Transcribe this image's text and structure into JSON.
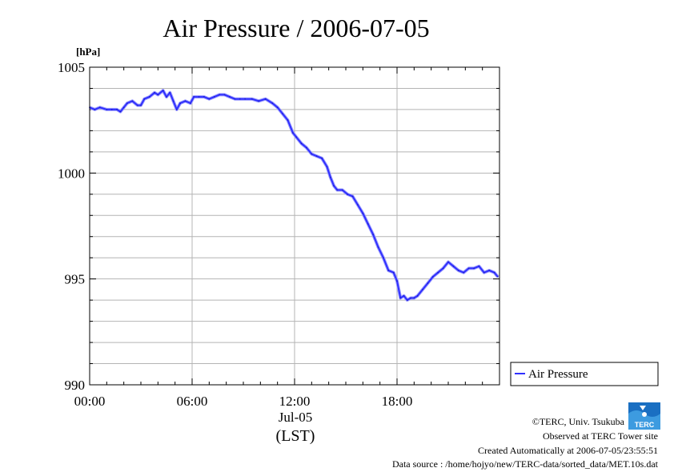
{
  "chart_data": {
    "type": "line",
    "title": "Air Pressure / 2006-07-05",
    "ylabel": "[hPa]",
    "xlabel": "(LST)",
    "date_label": "Jul-05",
    "ylim": [
      990,
      1005
    ],
    "xlim": [
      0,
      24
    ],
    "y_ticks": [
      {
        "value": 990,
        "label": "990"
      },
      {
        "value": 995,
        "label": "995"
      },
      {
        "value": 1000,
        "label": "1000"
      },
      {
        "value": 1005,
        "label": "1005"
      }
    ],
    "x_ticks": [
      {
        "value": 0,
        "label": "00:00"
      },
      {
        "value": 6,
        "label": "06:00"
      },
      {
        "value": 12,
        "label": "12:00"
      },
      {
        "value": 18,
        "label": "18:00"
      }
    ],
    "grid": true,
    "legend_position": "bottom-right, outside plot",
    "series": [
      {
        "name": "Air Pressure",
        "color": "#3030ff",
        "x": [
          0,
          0.3,
          0.6,
          1.0,
          1.3,
          1.6,
          1.8,
          2.0,
          2.2,
          2.5,
          2.8,
          3.0,
          3.2,
          3.5,
          3.8,
          4.0,
          4.3,
          4.5,
          4.7,
          4.9,
          5.1,
          5.3,
          5.6,
          5.9,
          6.1,
          6.4,
          6.7,
          7.0,
          7.3,
          7.6,
          7.9,
          8.2,
          8.5,
          8.8,
          9.1,
          9.5,
          9.9,
          10.3,
          10.7,
          11.0,
          11.3,
          11.6,
          11.9,
          12.1,
          12.4,
          12.7,
          13.0,
          13.3,
          13.6,
          13.9,
          14.1,
          14.3,
          14.5,
          14.8,
          15.1,
          15.4,
          15.7,
          16.0,
          16.3,
          16.6,
          16.9,
          17.2,
          17.5,
          17.8,
          18.0,
          18.2,
          18.4,
          18.6,
          18.8,
          19.0,
          19.2,
          19.5,
          19.8,
          20.1,
          20.4,
          20.7,
          21.0,
          21.3,
          21.6,
          21.9,
          22.2,
          22.5,
          22.8,
          23.1,
          23.4,
          23.7,
          23.9
        ],
        "values": [
          1003.1,
          1003.0,
          1003.1,
          1003.0,
          1003.0,
          1003.0,
          1002.9,
          1003.1,
          1003.3,
          1003.4,
          1003.2,
          1003.2,
          1003.5,
          1003.6,
          1003.8,
          1003.7,
          1003.9,
          1003.6,
          1003.8,
          1003.4,
          1003.0,
          1003.3,
          1003.4,
          1003.3,
          1003.6,
          1003.6,
          1003.6,
          1003.5,
          1003.6,
          1003.7,
          1003.7,
          1003.6,
          1003.5,
          1003.5,
          1003.5,
          1003.5,
          1003.4,
          1003.5,
          1003.3,
          1003.1,
          1002.8,
          1002.5,
          1001.9,
          1001.7,
          1001.4,
          1001.2,
          1000.9,
          1000.8,
          1000.7,
          1000.3,
          999.8,
          999.4,
          999.2,
          999.2,
          999.0,
          998.9,
          998.5,
          998.1,
          997.6,
          997.1,
          996.5,
          996.0,
          995.4,
          995.3,
          994.9,
          994.1,
          994.2,
          994.0,
          994.1,
          994.1,
          994.2,
          994.5,
          994.8,
          995.1,
          995.3,
          995.5,
          995.8,
          995.6,
          995.4,
          995.3,
          995.5,
          995.5,
          995.6,
          995.3,
          995.4,
          995.3,
          995.1
        ]
      }
    ]
  },
  "footer": {
    "copyright": "©TERC, Univ. Tsukuba",
    "observed": "Observed at TERC Tower site",
    "created": "Created Automatically at 2006-07-05/23:55:51",
    "source": "Data source : /home/hojyo/new/TERC-data/sorted_data/MET.10s.dat",
    "logo_text": "TERC"
  }
}
